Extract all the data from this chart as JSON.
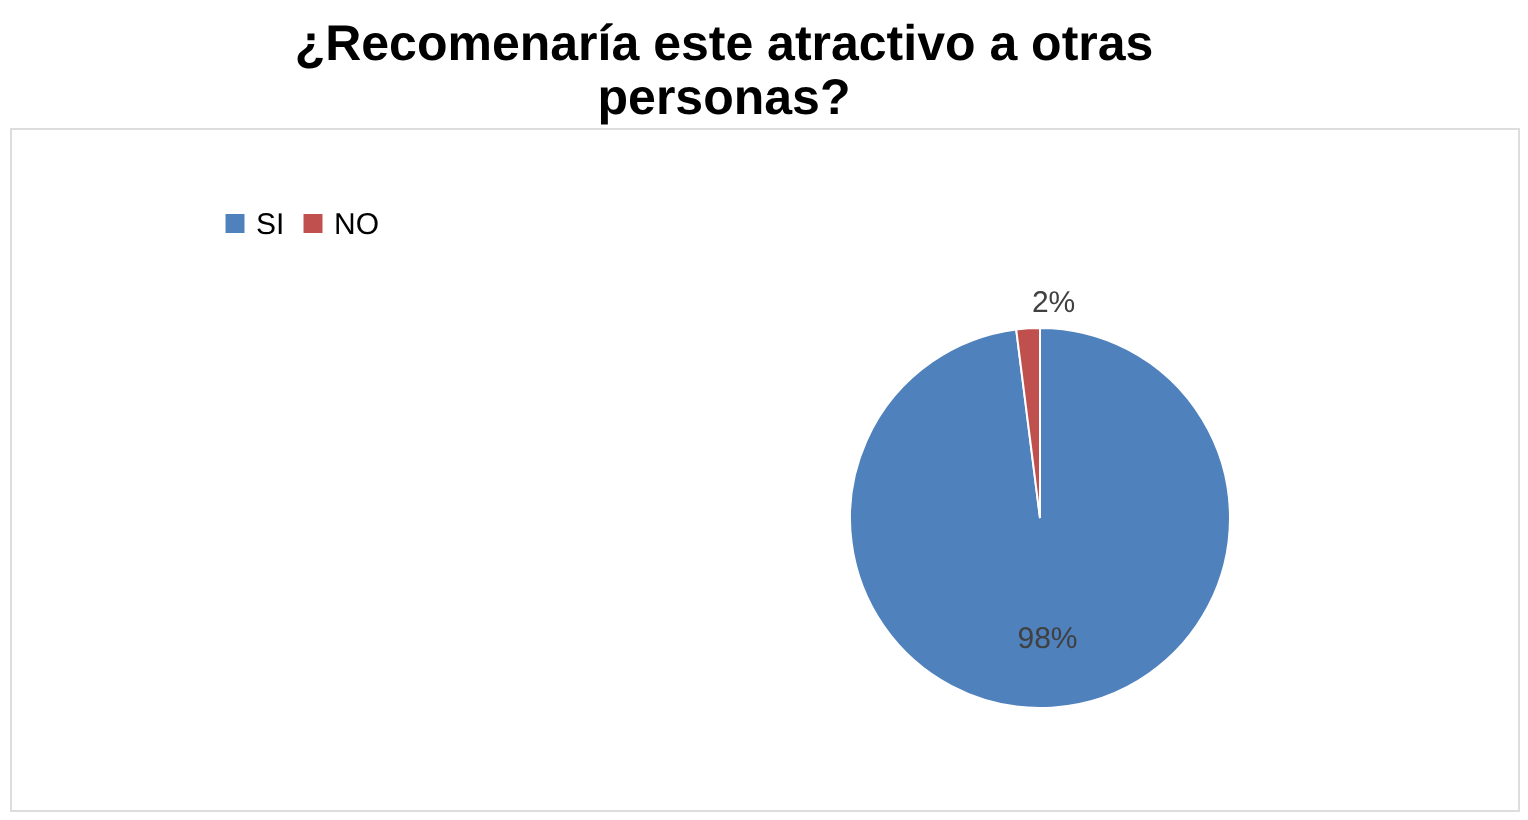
{
  "chart_data": {
    "type": "pie",
    "title": "¿Recomenaría este atractivo a otras personas?",
    "categories": [
      "SI",
      "NO"
    ],
    "values": [
      98,
      2
    ],
    "colors": [
      "#4f81bd",
      "#c0504d"
    ],
    "value_labels": [
      "98%",
      "2%"
    ],
    "legend": "left"
  }
}
